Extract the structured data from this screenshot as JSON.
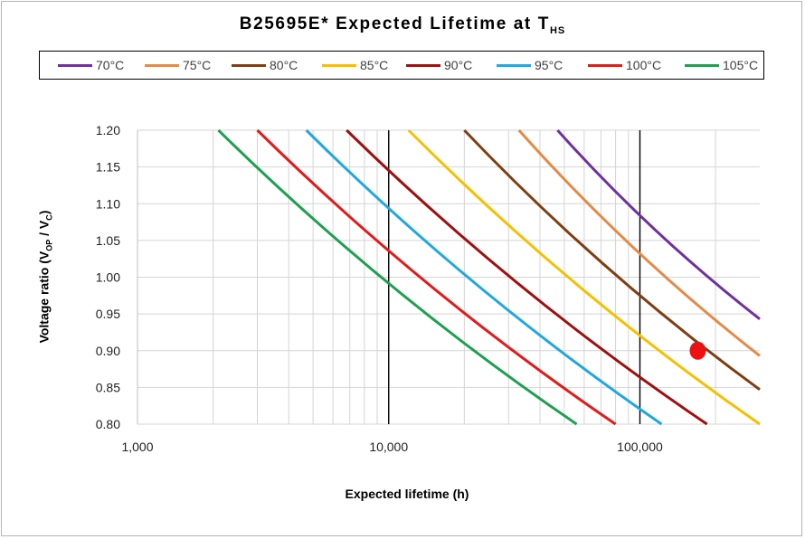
{
  "chart_data": {
    "type": "line",
    "title": "B25695E* Expected Lifetime at T",
    "title_subscript": "HS",
    "xlabel": "Expected lifetime  (h)",
    "ylabel_parts": {
      "a": "Voltage ratio (V",
      "b": "OP",
      "c": " / V",
      "d": "C",
      "e": ")"
    },
    "x_scale": "log",
    "xlim": [
      1000,
      300000
    ],
    "ylim": [
      0.8,
      1.2
    ],
    "x_ticks": [
      "1,000",
      "10,000",
      "100,000"
    ],
    "y_ticks": [
      "1.20",
      "1.15",
      "1.10",
      "1.05",
      "1.00",
      "0.95",
      "0.90",
      "0.85",
      "0.80"
    ],
    "grid": true,
    "legend_position": "top",
    "series": [
      {
        "name": "70°C",
        "color": "#7030a0",
        "x": [
          47000,
          300000
        ],
        "y": [
          1.2,
          0.943
        ]
      },
      {
        "name": "75°C",
        "color": "#e58a45",
        "x": [
          33000,
          300000
        ],
        "y": [
          1.2,
          0.893
        ]
      },
      {
        "name": "80°C",
        "color": "#7f3f12",
        "x": [
          20000,
          300000
        ],
        "y": [
          1.2,
          0.847
        ]
      },
      {
        "name": "85°C",
        "color": "#f5c000",
        "x": [
          12000,
          300000
        ],
        "y": [
          1.2,
          0.8
        ]
      },
      {
        "name": "90°C",
        "color": "#a01010",
        "x": [
          6800,
          185000
        ],
        "y": [
          1.2,
          0.8
        ]
      },
      {
        "name": "95°C",
        "color": "#20a8e0",
        "x": [
          4700,
          122000
        ],
        "y": [
          1.2,
          0.8
        ]
      },
      {
        "name": "100°C",
        "color": "#e21b1b",
        "x": [
          3000,
          80000
        ],
        "y": [
          1.2,
          0.8
        ]
      },
      {
        "name": "105°C",
        "color": "#1fa050",
        "x": [
          2100,
          56000
        ],
        "y": [
          1.2,
          0.8
        ]
      }
    ],
    "marker": {
      "x": 170000,
      "y": 0.9,
      "color": "#ee1111"
    }
  }
}
